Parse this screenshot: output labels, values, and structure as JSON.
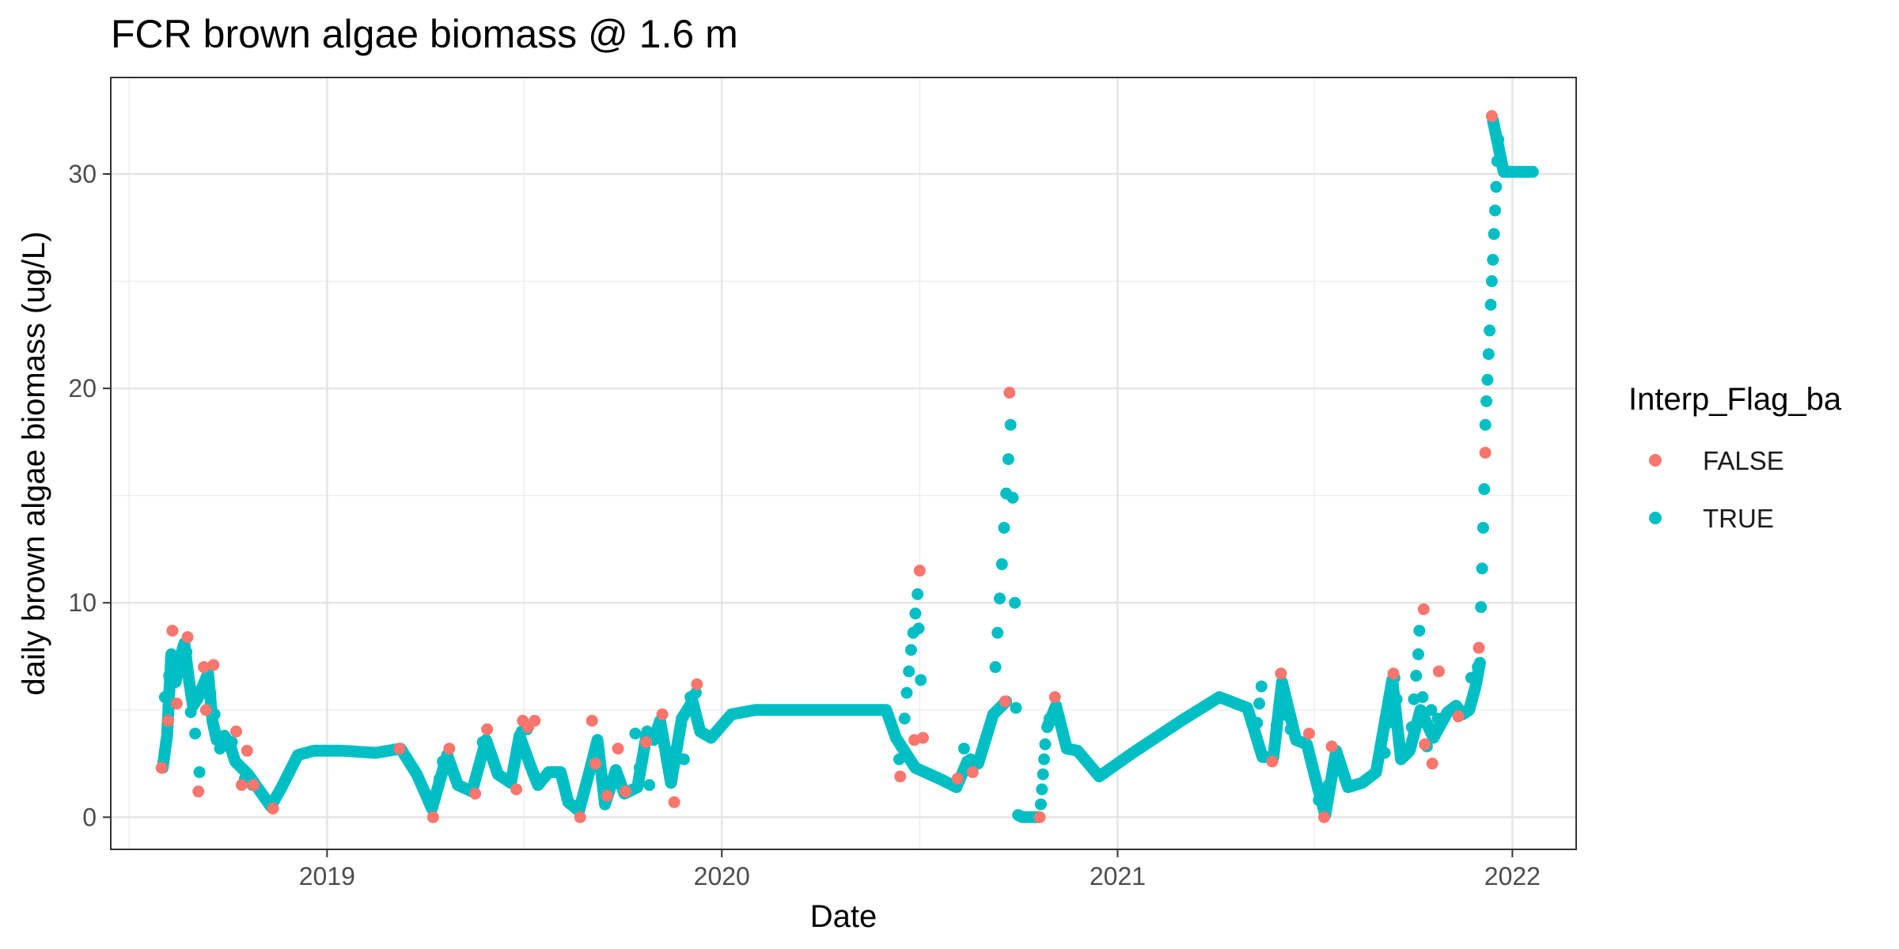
{
  "chart_data": {
    "type": "scatter",
    "title": "FCR brown algae biomass @ 1.6 m",
    "xlabel": "Date",
    "ylabel": "daily brown algae biomass (ug/L)",
    "xlim": [
      "2018-06-15",
      "2022-03-01"
    ],
    "ylim": [
      -1.5,
      34.5
    ],
    "x_ticks": [
      "2019-01-01",
      "2020-01-01",
      "2021-01-01",
      "2022-01-01"
    ],
    "x_tick_labels": [
      "2019",
      "2020",
      "2021",
      "2022"
    ],
    "y_ticks": [
      0,
      10,
      20,
      30
    ],
    "y_tick_labels": [
      "0",
      "10",
      "20",
      "30"
    ],
    "grid": true,
    "legend": {
      "title": "Interp_Flag_ba",
      "position": "right",
      "entries": [
        {
          "label": "FALSE",
          "color": "#F8766D"
        },
        {
          "label": "TRUE",
          "color": "#00BFC4"
        }
      ]
    },
    "series_true": {
      "name": "TRUE",
      "color": "#00BFC4",
      "path": [
        [
          "2018-08-02",
          2.3
        ],
        [
          "2018-08-06",
          3.8
        ],
        [
          "2018-08-10",
          7.6
        ],
        [
          "2018-08-14",
          6.3
        ],
        [
          "2018-08-18",
          7.4
        ],
        [
          "2018-08-22",
          8.1
        ],
        [
          "2018-08-26",
          6.5
        ],
        [
          "2018-08-30",
          5.2
        ],
        [
          "2018-09-03",
          5.5
        ],
        [
          "2018-09-08",
          6.1
        ],
        [
          "2018-09-13",
          6.7
        ],
        [
          "2018-09-17",
          4.5
        ],
        [
          "2018-09-21",
          3.6
        ],
        [
          "2018-09-28",
          3.8
        ],
        [
          "2018-10-03",
          3.4
        ],
        [
          "2018-10-08",
          2.6
        ],
        [
          "2018-10-14",
          2.3
        ],
        [
          "2018-10-20",
          2.0
        ],
        [
          "2018-10-27",
          1.5
        ],
        [
          "2018-11-03",
          1.0
        ],
        [
          "2018-11-10",
          0.5
        ],
        [
          "2018-11-20",
          1.4
        ],
        [
          "2018-12-05",
          2.9
        ],
        [
          "2018-12-20",
          3.1
        ],
        [
          "2019-01-15",
          3.1
        ],
        [
          "2019-02-15",
          3.0
        ],
        [
          "2019-03-10",
          3.2
        ],
        [
          "2019-03-25",
          2.0
        ],
        [
          "2019-04-08",
          0.4
        ],
        [
          "2019-04-22",
          2.9
        ],
        [
          "2019-05-02",
          1.5
        ],
        [
          "2019-05-15",
          1.2
        ],
        [
          "2019-05-28",
          3.6
        ],
        [
          "2019-06-08",
          2.0
        ],
        [
          "2019-06-20",
          1.6
        ],
        [
          "2019-06-28",
          3.8
        ],
        [
          "2019-07-08",
          2.4
        ],
        [
          "2019-07-15",
          1.5
        ],
        [
          "2019-07-25",
          2.1
        ],
        [
          "2019-08-05",
          2.1
        ],
        [
          "2019-08-12",
          0.7
        ],
        [
          "2019-08-22",
          0.3
        ],
        [
          "2019-09-01",
          2.2
        ],
        [
          "2019-09-08",
          3.6
        ],
        [
          "2019-09-15",
          0.6
        ],
        [
          "2019-09-25",
          2.2
        ],
        [
          "2019-10-03",
          1.1
        ],
        [
          "2019-10-15",
          1.4
        ],
        [
          "2019-10-24",
          4.0
        ],
        [
          "2019-10-30",
          3.6
        ],
        [
          "2019-11-05",
          4.5
        ],
        [
          "2019-11-15",
          1.6
        ],
        [
          "2019-11-25",
          4.6
        ],
        [
          "2019-12-05",
          5.4
        ],
        [
          "2019-12-12",
          4.0
        ],
        [
          "2019-12-22",
          3.7
        ],
        [
          "2020-01-10",
          4.8
        ],
        [
          "2020-02-01",
          5.0
        ],
        [
          "2020-06-01",
          5.0
        ],
        [
          "2020-06-10",
          3.7
        ],
        [
          "2020-06-28",
          2.3
        ],
        [
          "2020-07-20",
          1.8
        ],
        [
          "2020-08-05",
          1.4
        ],
        [
          "2020-08-15",
          2.6
        ],
        [
          "2020-08-25",
          2.5
        ],
        [
          "2020-09-08",
          4.8
        ],
        [
          "2020-09-20",
          5.4
        ]
      ],
      "path2": [
        [
          "2020-10-01",
          0.1
        ],
        [
          "2020-10-05",
          0.0
        ],
        [
          "2020-10-20",
          0.0
        ]
      ],
      "path3": [
        [
          "2020-10-28",
          4.2
        ],
        [
          "2020-11-05",
          5.2
        ],
        [
          "2020-11-15",
          3.2
        ],
        [
          "2020-11-25",
          3.1
        ],
        [
          "2020-12-15",
          1.9
        ],
        [
          "2021-01-15",
          3.0
        ],
        [
          "2021-03-01",
          4.5
        ],
        [
          "2021-04-05",
          5.6
        ],
        [
          "2021-05-01",
          5.1
        ],
        [
          "2021-05-15",
          2.8
        ],
        [
          "2021-05-25",
          2.8
        ],
        [
          "2021-06-02",
          6.3
        ],
        [
          "2021-06-15",
          3.6
        ],
        [
          "2021-06-25",
          3.4
        ],
        [
          "2021-07-05",
          1.4
        ],
        [
          "2021-07-12",
          0.1
        ],
        [
          "2021-07-22",
          3.1
        ],
        [
          "2021-08-02",
          1.4
        ],
        [
          "2021-08-15",
          1.6
        ],
        [
          "2021-08-28",
          2.1
        ],
        [
          "2021-09-12",
          6.4
        ],
        [
          "2021-09-20",
          2.7
        ],
        [
          "2021-09-28",
          3.1
        ],
        [
          "2021-10-08",
          5.0
        ],
        [
          "2021-10-20",
          3.7
        ],
        [
          "2021-11-02",
          4.9
        ],
        [
          "2021-11-10",
          5.2
        ],
        [
          "2021-11-16",
          4.8
        ],
        [
          "2021-11-22",
          5.0
        ],
        [
          "2021-11-28",
          6.1
        ],
        [
          "2021-12-02",
          7.2
        ]
      ],
      "path4": [
        [
          "2021-12-14",
          32.5
        ],
        [
          "2021-12-24",
          30.1
        ],
        [
          "2022-01-20",
          30.1
        ]
      ],
      "scatter": [
        [
          "2018-08-04",
          5.6
        ],
        [
          "2018-08-08",
          6.6
        ],
        [
          "2018-08-16",
          7.2
        ],
        [
          "2018-08-24",
          7.7
        ],
        [
          "2018-08-28",
          4.9
        ],
        [
          "2018-09-01",
          3.9
        ],
        [
          "2018-09-05",
          2.1
        ],
        [
          "2018-09-10",
          6.3
        ],
        [
          "2018-09-15",
          5.8
        ],
        [
          "2018-09-19",
          4.8
        ],
        [
          "2018-09-24",
          3.2
        ],
        [
          "2018-10-05",
          3.5
        ],
        [
          "2018-10-17",
          1.8
        ],
        [
          "2018-10-24",
          1.5
        ],
        [
          "2019-04-15",
          1.8
        ],
        [
          "2019-04-18",
          2.6
        ],
        [
          "2019-05-25",
          3.5
        ],
        [
          "2019-06-04",
          2.6
        ],
        [
          "2019-06-30",
          4.0
        ],
        [
          "2019-07-05",
          4.1
        ],
        [
          "2019-07-03",
          3.1
        ],
        [
          "2019-09-07",
          3.0
        ],
        [
          "2019-09-10",
          2.6
        ],
        [
          "2019-09-20",
          1.5
        ],
        [
          "2019-10-13",
          3.9
        ],
        [
          "2019-10-17",
          2.3
        ],
        [
          "2019-10-26",
          1.5
        ],
        [
          "2019-11-20",
          3.2
        ],
        [
          "2019-11-27",
          2.7
        ],
        [
          "2019-12-03",
          5.6
        ],
        [
          "2019-12-08",
          5.8
        ],
        [
          "2020-06-20",
          5.8
        ],
        [
          "2020-06-22",
          6.8
        ],
        [
          "2020-06-24",
          7.8
        ],
        [
          "2020-06-26",
          8.6
        ],
        [
          "2020-06-28",
          9.5
        ],
        [
          "2020-06-30",
          10.4
        ],
        [
          "2020-07-01",
          8.8
        ],
        [
          "2020-07-03",
          6.4
        ],
        [
          "2020-06-18",
          4.6
        ],
        [
          "2020-06-15",
          3.3
        ],
        [
          "2020-06-13",
          2.7
        ],
        [
          "2020-08-12",
          3.2
        ],
        [
          "2020-08-18",
          2.7
        ],
        [
          "2020-09-10",
          7.0
        ],
        [
          "2020-09-12",
          8.6
        ],
        [
          "2020-09-14",
          10.2
        ],
        [
          "2020-09-16",
          11.8
        ],
        [
          "2020-09-18",
          13.5
        ],
        [
          "2020-09-20",
          15.1
        ],
        [
          "2020-09-22",
          16.7
        ],
        [
          "2020-09-24",
          18.3
        ],
        [
          "2020-09-26",
          14.9
        ],
        [
          "2020-09-28",
          10.0
        ],
        [
          "2020-09-29",
          5.1
        ],
        [
          "2020-10-22",
          0.6
        ],
        [
          "2020-10-23",
          1.3
        ],
        [
          "2020-10-24",
          2.0
        ],
        [
          "2020-10-25",
          2.7
        ],
        [
          "2020-10-26",
          3.4
        ],
        [
          "2020-10-30",
          4.6
        ],
        [
          "2021-05-10",
          4.4
        ],
        [
          "2021-05-12",
          5.3
        ],
        [
          "2021-05-14",
          6.1
        ],
        [
          "2021-05-28",
          4.3
        ],
        [
          "2021-05-30",
          5.0
        ],
        [
          "2021-06-06",
          5.4
        ],
        [
          "2021-06-08",
          4.7
        ],
        [
          "2021-06-10",
          4.1
        ],
        [
          "2021-07-06",
          0.8
        ],
        [
          "2021-07-15",
          1.5
        ],
        [
          "2021-09-05",
          3.0
        ],
        [
          "2021-09-08",
          4.4
        ],
        [
          "2021-09-10",
          5.6
        ],
        [
          "2021-09-14",
          6.5
        ],
        [
          "2021-09-16",
          5.5
        ],
        [
          "2021-09-18",
          3.6
        ],
        [
          "2021-09-30",
          4.2
        ],
        [
          "2021-10-02",
          5.5
        ],
        [
          "2021-10-04",
          6.6
        ],
        [
          "2021-10-06",
          7.6
        ],
        [
          "2021-10-07",
          8.7
        ],
        [
          "2021-10-10",
          5.6
        ],
        [
          "2021-10-14",
          3.3
        ],
        [
          "2021-10-16",
          4.2
        ],
        [
          "2021-10-18",
          5.0
        ],
        [
          "2021-10-24",
          4.6
        ],
        [
          "2021-11-24",
          6.5
        ],
        [
          "2021-11-30",
          7.0
        ],
        [
          "2021-12-03",
          9.8
        ],
        [
          "2021-12-04",
          11.6
        ],
        [
          "2021-12-05",
          13.5
        ],
        [
          "2021-12-06",
          15.3
        ],
        [
          "2021-12-07",
          18.3
        ],
        [
          "2021-12-08",
          19.4
        ],
        [
          "2021-12-09",
          20.4
        ],
        [
          "2021-12-10",
          21.6
        ],
        [
          "2021-12-11",
          22.7
        ],
        [
          "2021-12-12",
          23.9
        ],
        [
          "2021-12-13",
          25.0
        ],
        [
          "2021-12-14",
          26.0
        ],
        [
          "2021-12-15",
          27.2
        ],
        [
          "2021-12-16",
          28.3
        ],
        [
          "2021-12-17",
          29.4
        ],
        [
          "2021-12-18",
          30.6
        ],
        [
          "2021-12-19",
          31.6
        ]
      ]
    },
    "series_false": {
      "name": "FALSE",
      "color": "#F8766D",
      "points": [
        [
          "2018-08-01",
          2.3
        ],
        [
          "2018-08-07",
          4.5
        ],
        [
          "2018-08-11",
          8.7
        ],
        [
          "2018-08-15",
          5.3
        ],
        [
          "2018-08-25",
          8.4
        ],
        [
          "2018-09-04",
          1.2
        ],
        [
          "2018-09-09",
          7.0
        ],
        [
          "2018-09-11",
          5.0
        ],
        [
          "2018-09-18",
          7.1
        ],
        [
          "2018-10-09",
          4.0
        ],
        [
          "2018-10-14",
          1.5
        ],
        [
          "2018-10-19",
          3.1
        ],
        [
          "2018-10-25",
          1.5
        ],
        [
          "2018-11-12",
          0.4
        ],
        [
          "2019-03-09",
          3.2
        ],
        [
          "2019-04-09",
          0.0
        ],
        [
          "2019-04-24",
          3.2
        ],
        [
          "2019-05-18",
          1.1
        ],
        [
          "2019-05-29",
          4.1
        ],
        [
          "2019-06-25",
          1.3
        ],
        [
          "2019-07-01",
          4.5
        ],
        [
          "2019-07-06",
          4.2
        ],
        [
          "2019-07-12",
          4.5
        ],
        [
          "2019-08-23",
          0.0
        ],
        [
          "2019-09-03",
          4.5
        ],
        [
          "2019-09-06",
          2.5
        ],
        [
          "2019-09-17",
          1.0
        ],
        [
          "2019-09-27",
          3.2
        ],
        [
          "2019-10-04",
          1.2
        ],
        [
          "2019-10-23",
          3.5
        ],
        [
          "2019-11-07",
          4.8
        ],
        [
          "2019-11-18",
          0.7
        ],
        [
          "2019-12-09",
          6.2
        ],
        [
          "2020-06-27",
          3.6
        ],
        [
          "2020-07-02",
          11.5
        ],
        [
          "2020-06-14",
          1.9
        ],
        [
          "2020-07-05",
          3.7
        ],
        [
          "2020-08-06",
          1.8
        ],
        [
          "2020-08-20",
          2.1
        ],
        [
          "2020-09-19",
          5.4
        ],
        [
          "2020-09-23",
          19.8
        ],
        [
          "2020-10-21",
          0.0
        ],
        [
          "2020-11-04",
          5.6
        ],
        [
          "2021-06-01",
          6.7
        ],
        [
          "2021-05-24",
          2.6
        ],
        [
          "2021-06-27",
          3.9
        ],
        [
          "2021-07-11",
          0.0
        ],
        [
          "2021-07-18",
          3.3
        ],
        [
          "2021-09-13",
          6.7
        ],
        [
          "2021-10-11",
          9.7
        ],
        [
          "2021-10-12",
          3.4
        ],
        [
          "2021-10-19",
          2.5
        ],
        [
          "2021-10-25",
          6.8
        ],
        [
          "2021-11-12",
          4.7
        ],
        [
          "2021-12-01",
          7.9
        ],
        [
          "2021-12-07",
          17.0
        ],
        [
          "2021-12-13",
          32.7
        ]
      ]
    }
  }
}
